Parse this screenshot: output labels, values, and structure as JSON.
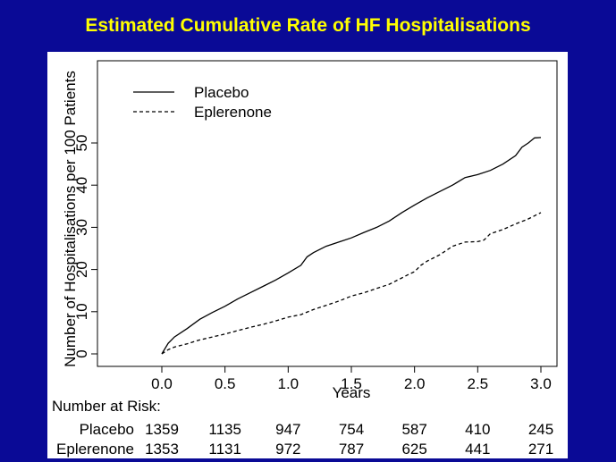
{
  "slide": {
    "title": "Estimated Cumulative Rate of HF Hospitalisations",
    "background_color": "#0a0a96",
    "title_color": "#ffff00"
  },
  "chart_data": {
    "type": "line",
    "title": "Estimated Cumulative Rate of HF Hospitalisations",
    "xlabel": "Years",
    "ylabel": "Number of Hospitalisations per 100 Patients",
    "xlim": [
      0.0,
      3.0
    ],
    "ylim": [
      0,
      50
    ],
    "x_ticks": [
      "0.0",
      "0.5",
      "1.0",
      "1.5",
      "2.0",
      "2.5",
      "3.0"
    ],
    "y_ticks": [
      "0",
      "10",
      "20",
      "30",
      "40",
      "50"
    ],
    "legend_position": "top-left",
    "grid": false,
    "series": [
      {
        "name": "Placebo",
        "style": "solid",
        "x": [
          0.0,
          0.05,
          0.1,
          0.2,
          0.3,
          0.4,
          0.5,
          0.6,
          0.7,
          0.8,
          0.9,
          1.0,
          1.1,
          1.15,
          1.2,
          1.3,
          1.4,
          1.5,
          1.6,
          1.7,
          1.8,
          1.9,
          2.0,
          2.1,
          2.2,
          2.3,
          2.4,
          2.5,
          2.6,
          2.7,
          2.8,
          2.85,
          2.9,
          2.95,
          3.0
        ],
        "values": [
          0,
          2.5,
          4.0,
          6.0,
          8.2,
          9.8,
          11.3,
          13.0,
          14.5,
          16.0,
          17.5,
          19.2,
          21.0,
          23.0,
          24.0,
          25.5,
          26.5,
          27.5,
          28.8,
          30.0,
          31.5,
          33.5,
          35.3,
          37.0,
          38.5,
          40.0,
          41.8,
          42.5,
          43.5,
          45.0,
          47.0,
          49.0,
          50.0,
          51.2,
          51.3
        ]
      },
      {
        "name": "Eplerenone",
        "style": "dashed",
        "x": [
          0.0,
          0.05,
          0.1,
          0.2,
          0.3,
          0.4,
          0.5,
          0.6,
          0.7,
          0.8,
          0.9,
          1.0,
          1.1,
          1.2,
          1.3,
          1.4,
          1.5,
          1.6,
          1.7,
          1.8,
          1.9,
          1.95,
          2.0,
          2.05,
          2.1,
          2.2,
          2.3,
          2.4,
          2.5,
          2.55,
          2.6,
          2.7,
          2.8,
          2.9,
          3.0
        ],
        "values": [
          0,
          1.0,
          1.6,
          2.4,
          3.3,
          4.0,
          4.7,
          5.5,
          6.3,
          7.0,
          7.8,
          8.7,
          9.3,
          10.5,
          11.5,
          12.5,
          13.7,
          14.5,
          15.5,
          16.5,
          18.0,
          18.8,
          19.5,
          21.0,
          22.0,
          23.5,
          25.5,
          26.5,
          26.6,
          27.0,
          28.5,
          29.5,
          30.8,
          32.0,
          33.5
        ]
      }
    ]
  },
  "risk_table": {
    "heading": "Number at Risk:",
    "rows": [
      {
        "label": "Placebo",
        "values": [
          "1359",
          "1135",
          "947",
          "754",
          "587",
          "410",
          "245"
        ]
      },
      {
        "label": "Eplerenone",
        "values": [
          "1353",
          "1131",
          "972",
          "787",
          "625",
          "441",
          "271"
        ]
      }
    ]
  }
}
